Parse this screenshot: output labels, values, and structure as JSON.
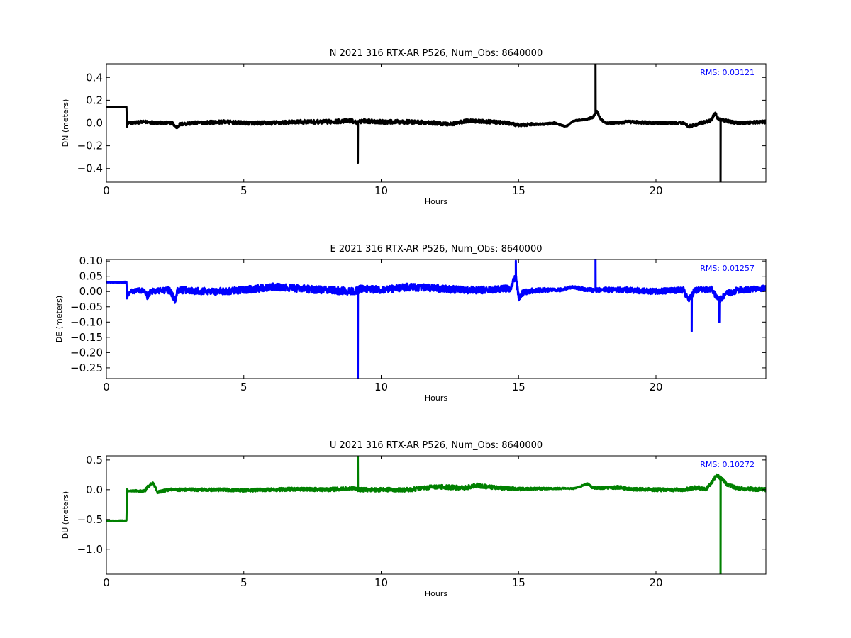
{
  "chart_data": [
    {
      "type": "line",
      "title": "N 2021 316 RTX-AR  P526, Num_Obs: 8640000",
      "xlabel": "Hours",
      "ylabel": "DN (meters)",
      "color": "#000000",
      "annotation": "RMS:  0.03121",
      "annotation_color": "#0000ff",
      "xlim": [
        0,
        24
      ],
      "ylim": [
        -0.52,
        0.52
      ],
      "xticks": [
        0,
        5,
        10,
        15,
        20
      ],
      "xtick_labels": [
        "0",
        "5",
        "10",
        "15",
        "20"
      ],
      "yticks": [
        0.4,
        0.2,
        0.0,
        -0.2,
        -0.4
      ],
      "ytick_labels": [
        "0.4",
        "0.2",
        "0.0",
        "−0.2",
        "−0.4"
      ],
      "series": [
        {
          "base": [
            [
              0,
              0.14
            ],
            [
              0.73,
              0.14
            ],
            [
              0.75,
              -0.03
            ],
            [
              0.8,
              0.0
            ],
            [
              1.4,
              0.01
            ],
            [
              2.0,
              0.0
            ],
            [
              2.4,
              0.0
            ],
            [
              2.55,
              -0.04
            ],
            [
              2.7,
              -0.01
            ],
            [
              3.2,
              0.0
            ],
            [
              4.3,
              0.01
            ],
            [
              5.0,
              0.0
            ],
            [
              6.0,
              0.0
            ],
            [
              7.0,
              0.01
            ],
            [
              8.0,
              0.01
            ],
            [
              8.9,
              0.02
            ],
            [
              9.15,
              0.0
            ],
            [
              9.3,
              0.02
            ],
            [
              10.0,
              0.01
            ],
            [
              11.0,
              0.01
            ],
            [
              12.0,
              0.0
            ],
            [
              12.5,
              -0.01
            ],
            [
              13.2,
              0.02
            ],
            [
              14.0,
              0.01
            ],
            [
              14.6,
              0.0
            ],
            [
              15.0,
              -0.02
            ],
            [
              15.5,
              -0.01
            ],
            [
              16.0,
              -0.01
            ],
            [
              16.3,
              0.0
            ],
            [
              16.7,
              -0.03
            ],
            [
              16.8,
              -0.02
            ],
            [
              17.0,
              0.02
            ],
            [
              17.4,
              0.03
            ],
            [
              17.7,
              0.05
            ],
            [
              17.85,
              0.1
            ],
            [
              18.0,
              0.03
            ],
            [
              18.2,
              0.0
            ],
            [
              18.5,
              0.0
            ],
            [
              19.0,
              0.01
            ],
            [
              20.0,
              0.0
            ],
            [
              21.0,
              0.0
            ],
            [
              21.2,
              -0.03
            ],
            [
              21.4,
              -0.02
            ],
            [
              21.6,
              0.0
            ],
            [
              22.0,
              0.02
            ],
            [
              22.15,
              0.09
            ],
            [
              22.25,
              0.04
            ],
            [
              22.5,
              0.02
            ],
            [
              23.0,
              0.0
            ],
            [
              24,
              0.01
            ]
          ],
          "noise": [
            [
              0,
              0
            ],
            [
              0.75,
              0.004
            ],
            [
              0.8,
              0.012
            ],
            [
              2.5,
              0.014
            ],
            [
              9.0,
              0.018
            ],
            [
              14.5,
              0.015
            ],
            [
              17.0,
              0.005
            ],
            [
              18.6,
              0.012
            ],
            [
              24,
              0.014
            ]
          ],
          "spikes": [
            [
              9.15,
              -0.35
            ],
            [
              17.8,
              0.52
            ],
            [
              22.35,
              -0.52
            ]
          ]
        }
      ]
    },
    {
      "type": "line",
      "title": "E 2021 316 RTX-AR  P526, Num_Obs: 8640000",
      "xlabel": "Hours",
      "ylabel": "DE (meters)",
      "color": "#0000ff",
      "annotation": "RMS:  0.01257",
      "annotation_color": "#0000ff",
      "xlim": [
        0,
        24
      ],
      "ylim": [
        -0.285,
        0.105
      ],
      "xticks": [
        0,
        5,
        10,
        15,
        20
      ],
      "xtick_labels": [
        "0",
        "5",
        "10",
        "15",
        "20"
      ],
      "yticks": [
        0.1,
        0.05,
        0.0,
        -0.05,
        -0.1,
        -0.15,
        -0.2,
        -0.25
      ],
      "ytick_labels": [
        "0.10",
        "0.05",
        "0.00",
        "−0.05",
        "−0.10",
        "−0.15",
        "−0.20",
        "−0.25"
      ],
      "series": [
        {
          "base": [
            [
              0,
              0.03
            ],
            [
              0.73,
              0.03
            ],
            [
              0.75,
              -0.02
            ],
            [
              0.85,
              0.0
            ],
            [
              1.4,
              0.005
            ],
            [
              1.5,
              -0.02
            ],
            [
              1.6,
              0.0
            ],
            [
              2.3,
              0.005
            ],
            [
              2.5,
              -0.03
            ],
            [
              2.6,
              0.005
            ],
            [
              4.0,
              0.0
            ],
            [
              5.0,
              0.005
            ],
            [
              6.0,
              0.015
            ],
            [
              7.0,
              0.01
            ],
            [
              8.0,
              0.005
            ],
            [
              9.0,
              0.0
            ],
            [
              9.3,
              0.01
            ],
            [
              10.0,
              0.005
            ],
            [
              11.0,
              0.015
            ],
            [
              12.0,
              0.01
            ],
            [
              13.0,
              0.005
            ],
            [
              14.0,
              0.005
            ],
            [
              14.7,
              0.01
            ],
            [
              14.9,
              0.05
            ],
            [
              15.0,
              -0.02
            ],
            [
              15.2,
              0.0
            ],
            [
              16.0,
              0.005
            ],
            [
              16.5,
              0.005
            ],
            [
              17.0,
              0.015
            ],
            [
              17.5,
              0.005
            ],
            [
              18.0,
              0.005
            ],
            [
              19.0,
              0.005
            ],
            [
              20.0,
              0.0
            ],
            [
              21.0,
              0.005
            ],
            [
              21.2,
              -0.03
            ],
            [
              21.4,
              0.005
            ],
            [
              21.8,
              0.005
            ],
            [
              22.0,
              0.01
            ],
            [
              22.3,
              -0.03
            ],
            [
              22.5,
              -0.01
            ],
            [
              23.0,
              0.005
            ],
            [
              24,
              0.01
            ]
          ],
          "noise": [
            [
              0,
              0
            ],
            [
              0.75,
              0.003
            ],
            [
              0.9,
              0.007
            ],
            [
              2.3,
              0.011
            ],
            [
              9.0,
              0.012
            ],
            [
              15.0,
              0.011
            ],
            [
              16.8,
              0.004
            ],
            [
              18.5,
              0.009
            ],
            [
              24,
              0.01
            ]
          ],
          "spikes": [
            [
              9.15,
              -0.285
            ],
            [
              14.9,
              0.1
            ],
            [
              17.8,
              0.105
            ],
            [
              21.3,
              -0.13
            ],
            [
              22.3,
              -0.1
            ]
          ]
        }
      ]
    },
    {
      "type": "line",
      "title": "U 2021 316 RTX-AR  P526, Num_Obs: 8640000",
      "xlabel": "Hours",
      "ylabel": "DU (meters)",
      "color": "#008000",
      "annotation": "RMS:  0.10272",
      "annotation_color": "#0000ff",
      "xlim": [
        0,
        24
      ],
      "ylim": [
        -1.42,
        0.57
      ],
      "xticks": [
        0,
        5,
        10,
        15,
        20
      ],
      "xtick_labels": [
        "0",
        "5",
        "10",
        "15",
        "20"
      ],
      "yticks": [
        0.5,
        0.0,
        -0.5,
        -1.0
      ],
      "ytick_labels": [
        "0.5",
        "0.0",
        "−0.5",
        "−1.0"
      ],
      "series": [
        {
          "base": [
            [
              0,
              -0.52
            ],
            [
              0.73,
              -0.52
            ],
            [
              0.75,
              0.0
            ],
            [
              0.8,
              -0.02
            ],
            [
              1.4,
              -0.02
            ],
            [
              1.5,
              0.05
            ],
            [
              1.7,
              0.12
            ],
            [
              1.85,
              -0.04
            ],
            [
              2.3,
              0.0
            ],
            [
              3.0,
              0.0
            ],
            [
              4.0,
              0.0
            ],
            [
              5.0,
              -0.01
            ],
            [
              6.0,
              0.0
            ],
            [
              7.0,
              0.01
            ],
            [
              8.0,
              0.0
            ],
            [
              9.0,
              0.02
            ],
            [
              9.2,
              0.0
            ],
            [
              10.0,
              0.0
            ],
            [
              11.0,
              0.0
            ],
            [
              12.0,
              0.05
            ],
            [
              13.0,
              0.03
            ],
            [
              13.5,
              0.07
            ],
            [
              14.0,
              0.04
            ],
            [
              15.0,
              0.01
            ],
            [
              16.0,
              0.02
            ],
            [
              17.0,
              0.02
            ],
            [
              17.5,
              0.1
            ],
            [
              17.7,
              0.03
            ],
            [
              18.0,
              0.03
            ],
            [
              18.7,
              0.04
            ],
            [
              19.0,
              0.01
            ],
            [
              20.0,
              0.0
            ],
            [
              21.0,
              0.0
            ],
            [
              21.5,
              0.04
            ],
            [
              21.8,
              0.0
            ],
            [
              22.0,
              0.1
            ],
            [
              22.2,
              0.25
            ],
            [
              22.4,
              0.18
            ],
            [
              22.6,
              0.08
            ],
            [
              23.0,
              0.02
            ],
            [
              24,
              0.0
            ]
          ],
          "noise": [
            [
              0,
              0
            ],
            [
              0.75,
              0.006
            ],
            [
              1.4,
              0.02
            ],
            [
              2.5,
              0.022
            ],
            [
              9.0,
              0.03
            ],
            [
              13.5,
              0.035
            ],
            [
              17.0,
              0.008
            ],
            [
              18.6,
              0.025
            ],
            [
              24,
              0.03
            ]
          ],
          "spikes": [
            [
              9.15,
              0.57
            ],
            [
              22.35,
              -1.42
            ]
          ]
        }
      ]
    }
  ]
}
